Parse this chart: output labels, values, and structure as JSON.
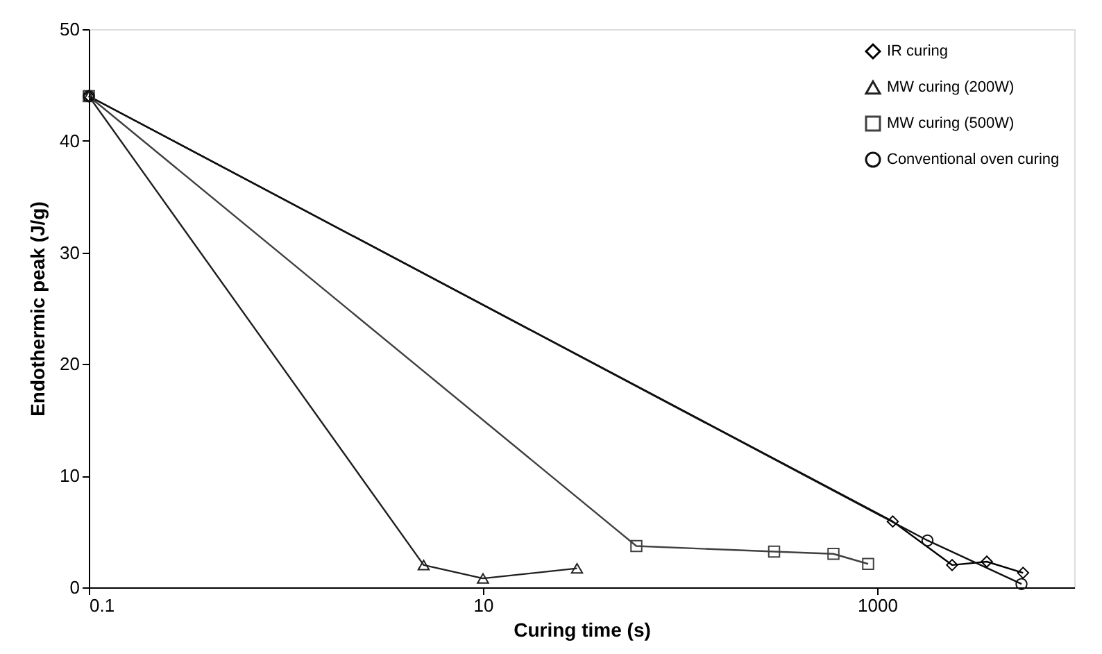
{
  "chart_data": {
    "type": "line",
    "xlabel": "Curing time (s)",
    "ylabel": "Endothermic peak (J/g)",
    "log": "x",
    "xlim": [
      0.1,
      10000
    ],
    "xticks": [
      0.1,
      10,
      1000
    ],
    "ylim": [
      0,
      50
    ],
    "yticks": [
      0,
      10,
      20,
      30,
      40,
      50
    ],
    "grid": false,
    "legend": "top right",
    "line_style": "solid",
    "series": [
      {
        "name": "IR curing",
        "color": "#000000",
        "marker": "diamond",
        "x": [
          0.1,
          1200,
          2400,
          3600,
          5500
        ],
        "values": [
          44,
          5.9,
          2.0,
          2.3,
          1.3
        ]
      },
      {
        "name": "MW curing (200W)",
        "color": "#202020",
        "marker": "triangle",
        "x": [
          0.1,
          5,
          10,
          30
        ],
        "values": [
          44,
          2.0,
          0.8,
          1.7
        ]
      },
      {
        "name": "MW curing (500W)",
        "color": "#404040",
        "marker": "square",
        "x": [
          0.1,
          60,
          300,
          600,
          900
        ],
        "values": [
          44,
          3.7,
          3.2,
          3.0,
          2.1
        ]
      },
      {
        "name": "Conventional oven curing",
        "color": "#101010",
        "marker": "circle",
        "x": [
          0.1,
          1800,
          5400
        ],
        "values": [
          44,
          4.2,
          0.3
        ]
      }
    ]
  }
}
